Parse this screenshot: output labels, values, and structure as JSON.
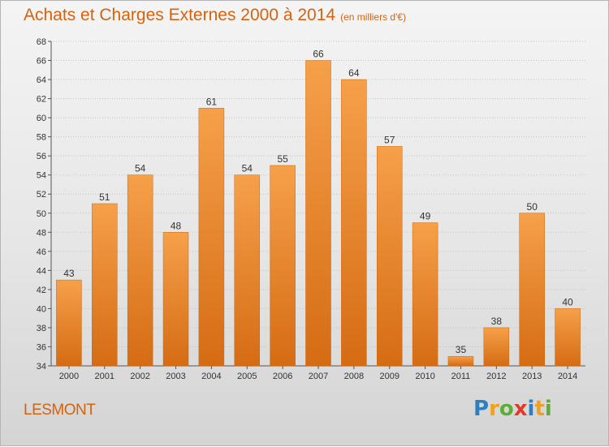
{
  "chart_data": {
    "type": "bar",
    "title": "Achats et Charges Externes 2000 à 2014",
    "subtitle": "(en milliers d'€)",
    "categories": [
      "2000",
      "2001",
      "2002",
      "2003",
      "2004",
      "2005",
      "2006",
      "2007",
      "2008",
      "2009",
      "2010",
      "2011",
      "2012",
      "2013",
      "2014"
    ],
    "values": [
      43,
      51,
      54,
      48,
      61,
      54,
      55,
      66,
      64,
      57,
      49,
      35,
      38,
      50,
      40
    ],
    "ylim": [
      34,
      68
    ],
    "yticks": [
      34,
      36,
      38,
      40,
      42,
      44,
      46,
      48,
      50,
      52,
      54,
      56,
      58,
      60,
      62,
      64,
      66,
      68
    ],
    "grid": true,
    "bar_color": "#f0963a",
    "bar_color_dark": "#d76b12"
  },
  "location": "LESMONT",
  "logo": {
    "letters": [
      "P",
      "r",
      "o",
      "x",
      "i",
      "t",
      "i"
    ],
    "colors": [
      "#2e7fc1",
      "#f0a020",
      "#5cae38",
      "#e03a2a",
      "#2e7fc1",
      "#f0a020",
      "#5cae38"
    ]
  }
}
